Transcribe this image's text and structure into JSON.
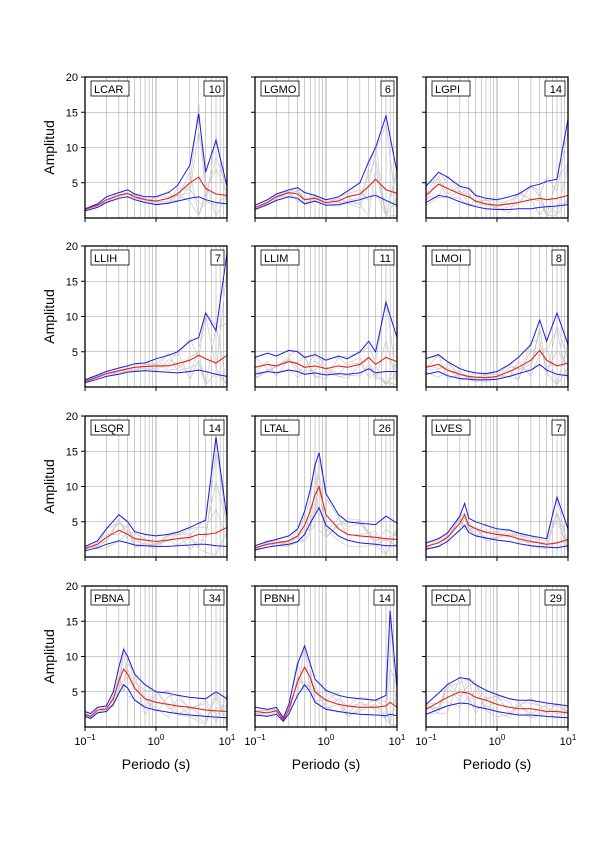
{
  "figure": {
    "ylabel": "Amplitud",
    "xlabel": "Periodo (s)",
    "y_ticks": [
      "5",
      "10",
      "15",
      "20"
    ],
    "x_ticks": [
      {
        "base": "10",
        "exp": "−1",
        "value": 0.1
      },
      {
        "base": "10",
        "exp": "0",
        "value": 1
      },
      {
        "base": "10",
        "exp": "1",
        "value": 10
      }
    ]
  },
  "colors": {
    "mean": "#e8231c",
    "std": "#1a1ae6",
    "individual": "#c8c8c8",
    "grid": "#9a9a9a"
  },
  "chart_data": [
    {
      "type": "line",
      "station": "LCAR",
      "count": "10",
      "xscale": "log",
      "xlim": [
        0.1,
        10
      ],
      "ylim": [
        0,
        20
      ],
      "x": [
        0.1,
        0.15,
        0.2,
        0.3,
        0.4,
        0.5,
        0.7,
        1.0,
        1.5,
        2.0,
        3.0,
        4.0,
        5.0,
        7.0,
        10.0
      ],
      "series": [
        {
          "values": [
            1.2,
            1.8,
            2.6,
            3.2,
            3.5,
            3.0,
            2.6,
            2.4,
            2.8,
            3.4,
            5.0,
            5.8,
            4.2,
            3.4,
            3.2
          ]
        },
        {
          "values": [
            1.3,
            2.0,
            3.0,
            3.6,
            4.0,
            3.4,
            3.0,
            3.0,
            3.6,
            4.6,
            7.5,
            14.8,
            6.5,
            11.0,
            4.5
          ]
        },
        {
          "values": [
            1.0,
            1.5,
            2.2,
            2.8,
            3.0,
            2.6,
            2.2,
            1.9,
            2.1,
            2.4,
            2.8,
            3.0,
            2.6,
            2.2,
            2.0
          ]
        }
      ]
    },
    {
      "type": "line",
      "station": "LGMO",
      "count": "6",
      "xscale": "log",
      "xlim": [
        0.1,
        10
      ],
      "ylim": [
        0,
        20
      ],
      "x": [
        0.1,
        0.15,
        0.2,
        0.3,
        0.4,
        0.5,
        0.7,
        1.0,
        1.5,
        2.0,
        3.0,
        4.0,
        5.0,
        7.0,
        10.0
      ],
      "series": [
        {
          "values": [
            1.5,
            2.2,
            3.0,
            3.6,
            3.4,
            2.6,
            2.8,
            2.2,
            2.4,
            3.0,
            3.4,
            4.5,
            5.5,
            4.0,
            3.5
          ]
        },
        {
          "values": [
            1.8,
            2.6,
            3.4,
            4.0,
            4.3,
            3.6,
            3.2,
            2.6,
            3.0,
            3.8,
            5.0,
            8.0,
            10.0,
            14.5,
            6.5
          ]
        },
        {
          "values": [
            1.2,
            1.9,
            2.5,
            3.0,
            2.8,
            2.0,
            2.4,
            1.8,
            1.9,
            2.2,
            2.6,
            3.0,
            3.2,
            2.5,
            1.8
          ]
        }
      ]
    },
    {
      "type": "line",
      "station": "LGPI",
      "count": "14",
      "xscale": "log",
      "xlim": [
        0.1,
        10
      ],
      "ylim": [
        0,
        20
      ],
      "x": [
        0.1,
        0.15,
        0.2,
        0.3,
        0.4,
        0.5,
        0.7,
        1.0,
        1.5,
        2.0,
        3.0,
        4.0,
        5.0,
        7.0,
        10.0
      ],
      "series": [
        {
          "values": [
            3.2,
            4.8,
            4.2,
            3.4,
            3.0,
            2.4,
            2.0,
            1.8,
            2.0,
            2.2,
            2.6,
            2.8,
            2.6,
            2.8,
            3.2
          ]
        },
        {
          "values": [
            4.5,
            6.5,
            5.8,
            4.5,
            4.2,
            3.2,
            2.8,
            2.6,
            3.0,
            3.4,
            4.5,
            4.8,
            5.2,
            5.5,
            14.0
          ]
        },
        {
          "values": [
            2.2,
            3.2,
            3.0,
            2.3,
            1.9,
            1.6,
            1.3,
            1.2,
            1.2,
            1.3,
            1.3,
            1.5,
            1.6,
            1.7,
            1.9
          ]
        }
      ]
    },
    {
      "type": "line",
      "station": "LLIH",
      "count": "7",
      "xscale": "log",
      "xlim": [
        0.1,
        10
      ],
      "ylim": [
        0,
        20
      ],
      "x": [
        0.1,
        0.15,
        0.2,
        0.3,
        0.4,
        0.5,
        0.7,
        1.0,
        1.5,
        2.0,
        3.0,
        4.0,
        5.0,
        7.0,
        10.0
      ],
      "series": [
        {
          "values": [
            0.8,
            1.4,
            1.9,
            2.3,
            2.6,
            2.8,
            2.9,
            3.0,
            3.0,
            3.3,
            3.8,
            4.5,
            4.0,
            3.4,
            4.5
          ]
        },
        {
          "values": [
            1.0,
            1.7,
            2.2,
            2.7,
            3.0,
            3.3,
            3.4,
            4.0,
            4.5,
            5.0,
            6.5,
            7.0,
            10.5,
            8.0,
            19.0
          ]
        },
        {
          "values": [
            0.6,
            1.1,
            1.5,
            1.8,
            2.1,
            2.2,
            2.3,
            2.2,
            2.1,
            2.0,
            2.2,
            2.4,
            2.2,
            1.8,
            1.5
          ]
        }
      ]
    },
    {
      "type": "line",
      "station": "LLIM",
      "count": "11",
      "xscale": "log",
      "xlim": [
        0.1,
        10
      ],
      "ylim": [
        0,
        20
      ],
      "x": [
        0.1,
        0.15,
        0.2,
        0.3,
        0.4,
        0.5,
        0.7,
        1.0,
        1.5,
        2.0,
        3.0,
        4.0,
        5.0,
        7.0,
        10.0
      ],
      "series": [
        {
          "values": [
            2.8,
            3.2,
            3.0,
            3.6,
            3.3,
            2.8,
            3.0,
            2.6,
            3.0,
            2.8,
            3.2,
            4.2,
            3.2,
            4.2,
            3.6
          ]
        },
        {
          "values": [
            4.2,
            4.8,
            4.4,
            5.2,
            5.0,
            4.2,
            4.6,
            3.8,
            4.4,
            4.0,
            5.0,
            6.5,
            5.0,
            12.0,
            7.0
          ]
        },
        {
          "values": [
            1.8,
            2.2,
            2.0,
            2.4,
            2.2,
            1.8,
            2.0,
            1.7,
            1.9,
            1.8,
            2.0,
            2.6,
            2.0,
            2.2,
            2.2
          ]
        }
      ]
    },
    {
      "type": "line",
      "station": "LMOI",
      "count": "8",
      "xscale": "log",
      "xlim": [
        0.1,
        10
      ],
      "ylim": [
        0,
        20
      ],
      "x": [
        0.1,
        0.15,
        0.2,
        0.3,
        0.4,
        0.5,
        0.7,
        1.0,
        1.5,
        2.0,
        3.0,
        4.0,
        5.0,
        7.0,
        10.0
      ],
      "series": [
        {
          "values": [
            2.8,
            3.2,
            2.4,
            1.8,
            1.5,
            1.4,
            1.3,
            1.5,
            2.2,
            2.8,
            3.8,
            5.2,
            3.8,
            3.0,
            3.4
          ]
        },
        {
          "values": [
            4.0,
            4.6,
            3.6,
            2.6,
            2.2,
            2.0,
            1.9,
            2.2,
            3.2,
            4.2,
            6.0,
            9.5,
            6.5,
            10.5,
            6.0
          ]
        },
        {
          "values": [
            1.8,
            2.2,
            1.6,
            1.2,
            1.1,
            1.0,
            1.0,
            1.1,
            1.5,
            1.9,
            2.4,
            3.2,
            2.4,
            1.8,
            1.6
          ]
        }
      ]
    },
    {
      "type": "line",
      "station": "LSQR",
      "count": "14",
      "xscale": "log",
      "xlim": [
        0.1,
        10
      ],
      "ylim": [
        0,
        20
      ],
      "x": [
        0.1,
        0.15,
        0.2,
        0.3,
        0.4,
        0.5,
        0.7,
        1.0,
        1.5,
        2.0,
        3.0,
        4.0,
        5.0,
        7.0,
        10.0
      ],
      "series": [
        {
          "values": [
            1.2,
            1.8,
            2.8,
            3.8,
            3.2,
            2.6,
            2.4,
            2.2,
            2.4,
            2.6,
            2.8,
            3.2,
            3.2,
            3.4,
            4.2
          ]
        },
        {
          "values": [
            1.5,
            2.3,
            4.0,
            6.0,
            5.0,
            3.6,
            3.2,
            3.0,
            3.2,
            3.5,
            4.2,
            4.8,
            5.2,
            17.0,
            5.5
          ]
        },
        {
          "values": [
            0.9,
            1.3,
            1.8,
            2.3,
            2.0,
            1.7,
            1.6,
            1.5,
            1.5,
            1.6,
            1.7,
            1.8,
            1.8,
            1.6,
            1.5
          ]
        }
      ]
    },
    {
      "type": "line",
      "station": "LTAL",
      "count": "26",
      "xscale": "log",
      "xlim": [
        0.1,
        10
      ],
      "ylim": [
        0,
        20
      ],
      "x": [
        0.1,
        0.15,
        0.2,
        0.3,
        0.4,
        0.5,
        0.6,
        0.7,
        0.8,
        1.0,
        1.5,
        2.0,
        3.0,
        5.0,
        7.0,
        10.0
      ],
      "series": [
        {
          "values": [
            1.3,
            1.8,
            2.0,
            2.3,
            3.0,
            4.5,
            6.5,
            8.8,
            10.0,
            6.0,
            4.0,
            3.2,
            3.0,
            2.8,
            2.6,
            2.5
          ]
        },
        {
          "values": [
            1.6,
            2.2,
            2.5,
            3.0,
            4.0,
            6.5,
            9.5,
            13.0,
            14.8,
            9.0,
            6.0,
            5.0,
            4.8,
            4.6,
            5.8,
            4.8
          ]
        },
        {
          "values": [
            1.0,
            1.4,
            1.6,
            1.8,
            2.2,
            3.2,
            4.8,
            6.0,
            7.0,
            4.5,
            3.0,
            2.4,
            2.0,
            1.8,
            1.6,
            1.6
          ]
        }
      ]
    },
    {
      "type": "line",
      "station": "LVES",
      "count": "7",
      "xscale": "log",
      "xlim": [
        0.1,
        10
      ],
      "ylim": [
        0,
        20
      ],
      "x": [
        0.1,
        0.15,
        0.2,
        0.3,
        0.35,
        0.4,
        0.5,
        0.7,
        1.0,
        1.5,
        2.0,
        3.0,
        5.0,
        7.0,
        10.0
      ],
      "series": [
        {
          "values": [
            1.5,
            2.0,
            2.8,
            4.8,
            6.0,
            4.5,
            4.0,
            3.5,
            3.2,
            3.0,
            2.6,
            2.2,
            1.8,
            2.0,
            2.5
          ]
        },
        {
          "values": [
            2.0,
            2.6,
            3.4,
            5.8,
            7.6,
            5.5,
            5.0,
            4.5,
            4.0,
            3.8,
            3.4,
            3.0,
            2.6,
            8.5,
            4.0
          ]
        },
        {
          "values": [
            1.1,
            1.5,
            2.2,
            3.8,
            4.5,
            3.5,
            3.0,
            2.7,
            2.4,
            2.2,
            1.9,
            1.6,
            1.4,
            1.3,
            1.6
          ]
        }
      ]
    },
    {
      "type": "line",
      "station": "PBNA",
      "count": "34",
      "xscale": "log",
      "xlim": [
        0.1,
        10
      ],
      "ylim": [
        0,
        20
      ],
      "x": [
        0.1,
        0.12,
        0.15,
        0.2,
        0.25,
        0.3,
        0.35,
        0.4,
        0.5,
        0.7,
        1.0,
        1.5,
        2.0,
        3.0,
        5.0,
        7.0,
        10.0
      ],
      "series": [
        {
          "values": [
            1.8,
            1.5,
            2.4,
            2.6,
            4.0,
            6.5,
            8.2,
            7.5,
            5.5,
            4.0,
            3.5,
            3.2,
            3.0,
            2.8,
            2.4,
            2.3,
            2.2
          ]
        },
        {
          "values": [
            2.2,
            1.9,
            2.8,
            3.0,
            5.0,
            8.5,
            11.0,
            10.0,
            7.5,
            6.0,
            5.0,
            4.8,
            4.5,
            4.2,
            4.0,
            5.0,
            4.0
          ]
        },
        {
          "values": [
            1.5,
            1.2,
            2.0,
            2.2,
            3.2,
            4.8,
            6.0,
            5.5,
            3.8,
            2.8,
            2.4,
            2.1,
            1.9,
            1.7,
            1.5,
            1.4,
            1.3
          ]
        }
      ]
    },
    {
      "type": "line",
      "station": "PBNH",
      "count": "14",
      "xscale": "log",
      "xlim": [
        0.1,
        10
      ],
      "ylim": [
        0,
        20
      ],
      "x": [
        0.1,
        0.15,
        0.2,
        0.25,
        0.3,
        0.4,
        0.5,
        0.6,
        0.7,
        1.0,
        1.5,
        2.0,
        3.0,
        5.0,
        7.0,
        8.0,
        10.0
      ],
      "series": [
        {
          "values": [
            2.2,
            2.0,
            2.3,
            1.0,
            2.5,
            6.5,
            8.5,
            7.0,
            5.0,
            3.8,
            3.2,
            3.0,
            2.8,
            2.8,
            3.0,
            3.5,
            2.8
          ]
        },
        {
          "values": [
            2.8,
            2.5,
            2.8,
            1.3,
            3.2,
            9.0,
            11.5,
            9.0,
            6.8,
            5.2,
            4.5,
            4.2,
            4.0,
            3.8,
            4.5,
            16.5,
            5.5
          ]
        },
        {
          "values": [
            1.7,
            1.5,
            1.8,
            0.8,
            1.9,
            4.5,
            6.0,
            5.0,
            3.5,
            2.5,
            2.2,
            2.0,
            1.8,
            1.7,
            1.6,
            1.8,
            1.6
          ]
        }
      ]
    },
    {
      "type": "line",
      "station": "PCDA",
      "count": "29",
      "xscale": "log",
      "xlim": [
        0.1,
        10
      ],
      "ylim": [
        0,
        20
      ],
      "x": [
        0.1,
        0.15,
        0.2,
        0.3,
        0.4,
        0.5,
        0.7,
        1.0,
        1.5,
        2.0,
        3.0,
        5.0,
        7.0,
        10.0
      ],
      "series": [
        {
          "values": [
            2.5,
            3.5,
            4.2,
            5.0,
            4.8,
            4.2,
            3.8,
            3.2,
            2.8,
            2.6,
            2.6,
            2.2,
            2.2,
            2.0
          ]
        },
        {
          "values": [
            3.2,
            4.8,
            6.0,
            7.0,
            6.8,
            6.0,
            5.2,
            4.6,
            4.0,
            3.8,
            3.8,
            3.4,
            3.2,
            3.0
          ]
        },
        {
          "values": [
            1.8,
            2.5,
            3.0,
            3.4,
            3.3,
            2.9,
            2.6,
            2.2,
            1.9,
            1.7,
            1.7,
            1.5,
            1.4,
            1.3
          ]
        }
      ]
    }
  ]
}
